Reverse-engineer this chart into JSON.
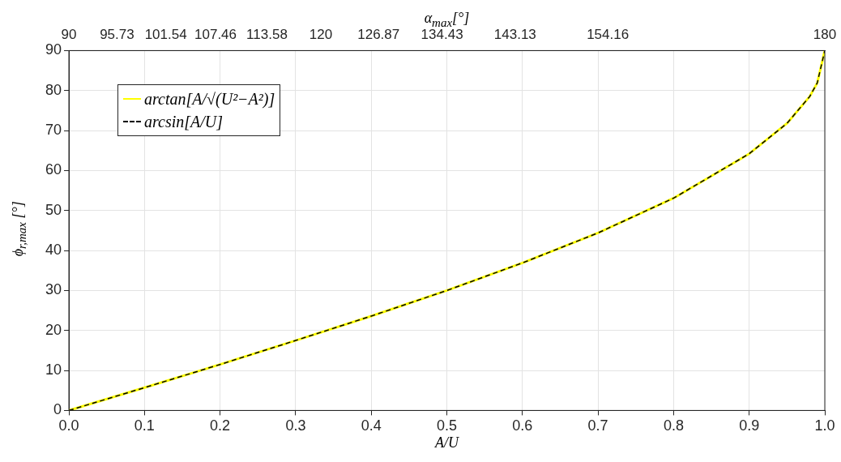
{
  "chart_data": {
    "type": "line",
    "xlabel": "A/U",
    "ylabel": "ϕ$_{r,max}$ [°]",
    "x2label": "α$_{max}$[°]",
    "x": [
      0,
      0.1,
      0.2,
      0.3,
      0.4,
      0.5,
      0.6,
      0.7,
      0.8,
      0.9,
      0.95,
      0.98,
      0.99,
      1.0
    ],
    "series": [
      {
        "name": "arctan[A/√(U²−A²)]",
        "color": "#ffff00",
        "line_style": "solid",
        "values": [
          0,
          5.7,
          11.5,
          17.5,
          23.6,
          30,
          36.9,
          44.4,
          53.1,
          64.2,
          71.8,
          78.5,
          81.9,
          90
        ]
      },
      {
        "name": "arcsin[A/U]",
        "color": "#000000",
        "line_style": "dashed",
        "values": [
          0,
          5.7,
          11.5,
          17.5,
          23.6,
          30,
          36.9,
          44.4,
          53.1,
          64.2,
          71.8,
          78.5,
          81.9,
          90
        ]
      }
    ],
    "xlim": [
      0,
      1
    ],
    "xticks": [
      {
        "value": 0,
        "label": "0.0"
      },
      {
        "value": 0.1,
        "label": "0.1"
      },
      {
        "value": 0.2,
        "label": "0.2"
      },
      {
        "value": 0.3,
        "label": "0.3"
      },
      {
        "value": 0.4,
        "label": "0.4"
      },
      {
        "value": 0.5,
        "label": "0.5"
      },
      {
        "value": 0.6,
        "label": "0.6"
      },
      {
        "value": 0.7,
        "label": "0.7"
      },
      {
        "value": 0.8,
        "label": "0.8"
      },
      {
        "value": 0.9,
        "label": "0.9"
      },
      {
        "value": 1,
        "label": "1.0"
      }
    ],
    "x2lim": [
      90,
      180
    ],
    "x2ticks": [
      90,
      95.73,
      101.54,
      107.46,
      113.58,
      120,
      126.87,
      134.43,
      143.13,
      154.16,
      180
    ],
    "ylim": [
      0,
      90
    ],
    "yticks": [
      0,
      10,
      20,
      30,
      40,
      50,
      60,
      70,
      80,
      90
    ],
    "grid": true,
    "legend": "top left",
    "marker": "none"
  }
}
